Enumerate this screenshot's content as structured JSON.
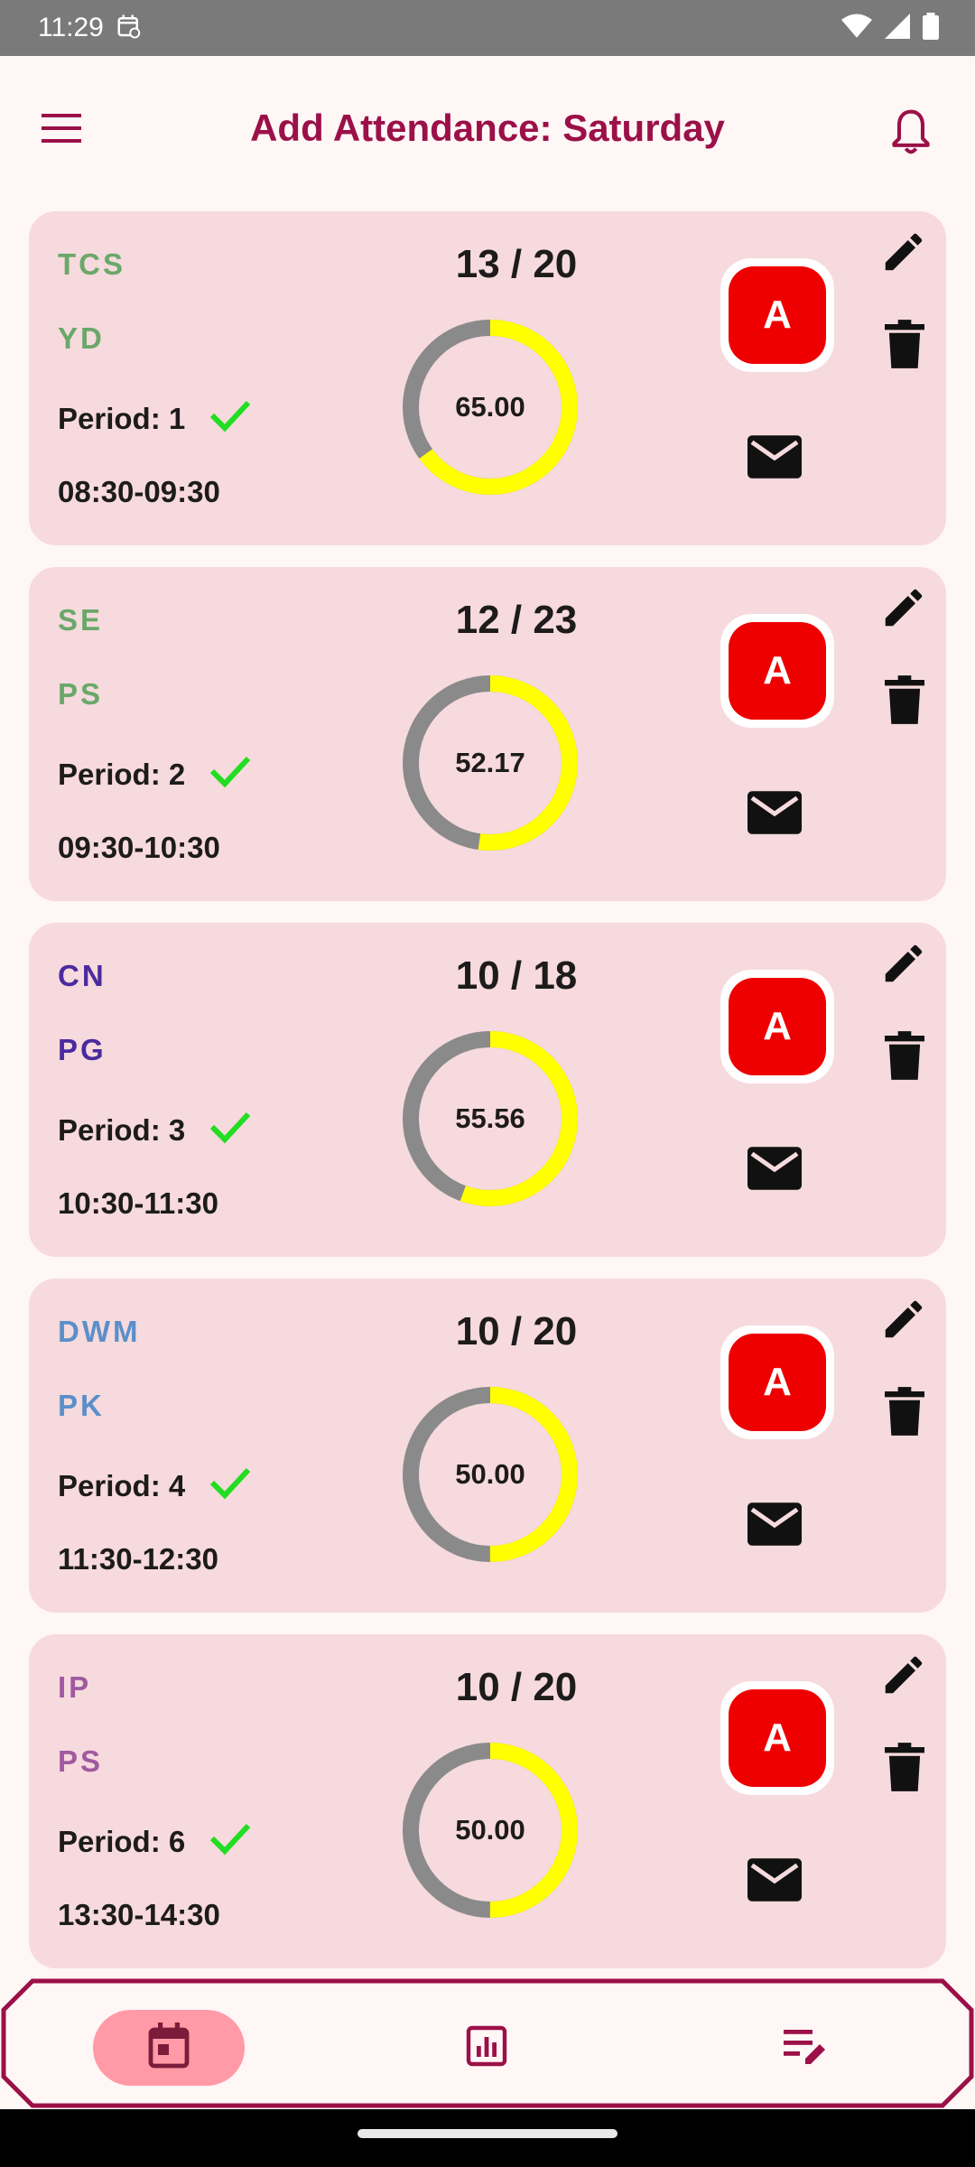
{
  "status_bar": {
    "time": "11:29"
  },
  "app_bar": {
    "title": "Add Attendance: Saturday"
  },
  "cards": [
    {
      "subject": "TCS",
      "teacher": "YD",
      "period_label": "Period: 1",
      "time": "08:30-09:30",
      "ratio": "13 / 20",
      "percent_text": "65.00",
      "percent": 65.0,
      "label_color": "#6aa86a",
      "action_label": "A"
    },
    {
      "subject": "SE",
      "teacher": "PS",
      "period_label": "Period: 2",
      "time": "09:30-10:30",
      "ratio": "12 / 23",
      "percent_text": "52.17",
      "percent": 52.17,
      "label_color": "#6aa86a",
      "action_label": "A"
    },
    {
      "subject": "CN",
      "teacher": "PG",
      "period_label": "Period: 3",
      "time": "10:30-11:30",
      "ratio": "10 / 18",
      "percent_text": "55.56",
      "percent": 55.56,
      "label_color": "#4a2a9e",
      "action_label": "A"
    },
    {
      "subject": "DWM",
      "teacher": "PK",
      "period_label": "Period: 4",
      "time": "11:30-12:30",
      "ratio": "10 / 20",
      "percent_text": "50.00",
      "percent": 50.0,
      "label_color": "#5b8fc9",
      "action_label": "A"
    },
    {
      "subject": "IP",
      "teacher": "PS",
      "period_label": "Period: 6",
      "time": "13:30-14:30",
      "ratio": "10 / 20",
      "percent_text": "50.00",
      "percent": 50.0,
      "label_color": "#a05aa0",
      "action_label": "A"
    }
  ],
  "colors": {
    "accent": "#9b1048",
    "progress_fill": "#ffff00",
    "progress_track": "#8a8a8a",
    "absent_button": "#ee0000",
    "check": "#22dd22",
    "nav_active": "#ff9aa6"
  },
  "bottom_nav": {
    "items": [
      {
        "icon": "calendar-icon",
        "active": true
      },
      {
        "icon": "bar-chart-icon",
        "active": false
      },
      {
        "icon": "edit-list-icon",
        "active": false
      }
    ]
  }
}
